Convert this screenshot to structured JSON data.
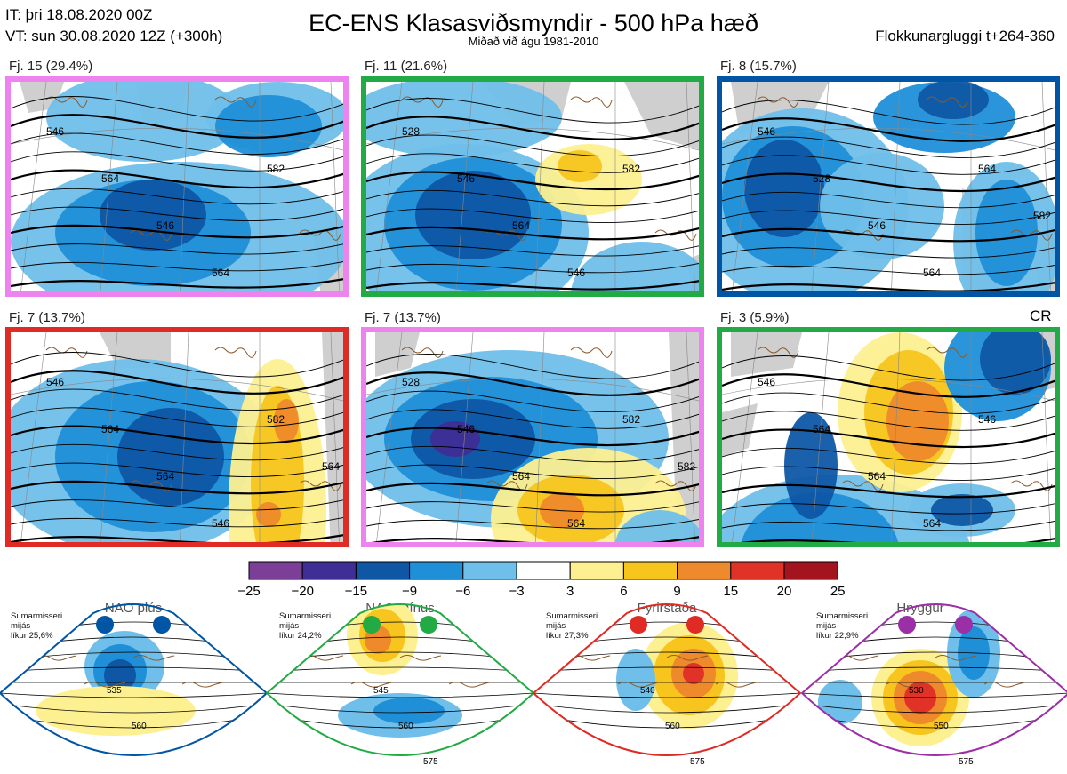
{
  "header": {
    "initial_time": "IT: þri 18.08.2020 00Z",
    "valid_time": "VT: sun 30.08.2020 12Z  (+300h)",
    "title": "EC-ENS Klasasviðsmyndir - 500 hPa hæð",
    "subtitle": "Miðað við águ 1981-2010",
    "cluster_window": "Flokkunargluggi t+264-360"
  },
  "panels": [
    {
      "label": "Fj. 15 (29.4%)",
      "members": 15,
      "percent": 29.4,
      "frame_color": "#ee82ee",
      "contours": [
        "546",
        "564",
        "546",
        "564",
        "582"
      ]
    },
    {
      "label": "Fj. 11 (21.6%)",
      "members": 11,
      "percent": 21.6,
      "frame_color": "#22aa44",
      "contours": [
        "528",
        "546",
        "564",
        "546",
        "582"
      ]
    },
    {
      "label": "Fj. 8 (15.7%)",
      "members": 8,
      "percent": 15.7,
      "frame_color": "#0055a5",
      "contours": [
        "546",
        "528",
        "546",
        "564",
        "564",
        "582"
      ]
    },
    {
      "label": "Fj. 7 (13.7%)",
      "members": 7,
      "percent": 13.7,
      "frame_color": "#e02a24",
      "contours": [
        "546",
        "564",
        "564",
        "546",
        "582",
        "564"
      ]
    },
    {
      "label": "Fj. 7 (13.7%)",
      "members": 7,
      "percent": 13.7,
      "frame_color": "#ee82ee",
      "contours": [
        "528",
        "546",
        "564",
        "564",
        "582",
        "582"
      ]
    },
    {
      "label": "Fj. 3 (5.9%)",
      "members": 3,
      "percent": 5.9,
      "frame_color": "#22aa44",
      "contours": [
        "546",
        "564",
        "564",
        "564",
        "546"
      ]
    }
  ],
  "climatology_reference_label": "CR",
  "colorbar": {
    "ticks": [
      "−25",
      "−20",
      "−15",
      "−9",
      "−6",
      "−3",
      "3",
      "6",
      "9",
      "15",
      "20",
      "25"
    ],
    "colors": [
      "#7b3f97",
      "#3f2e95",
      "#0f57a5",
      "#1f8fd8",
      "#6fbfea",
      "#ffffff",
      "#fdf091",
      "#f7c51e",
      "#ee8a2c",
      "#e13228",
      "#a3141f"
    ]
  },
  "regimes": [
    {
      "name": "NAO plús",
      "season": "Sumarmisseri",
      "status": "mijás",
      "probability": "líkur 25,6%",
      "color": "#0055a5",
      "contours": [
        "535",
        "560"
      ]
    },
    {
      "name": "NAO mínus",
      "season": "Sumarmisseri",
      "status": "mijás",
      "probability": "líkur 24,2%",
      "color": "#22aa44",
      "contours": [
        "545",
        "560",
        "575"
      ]
    },
    {
      "name": "Fyrirstaða",
      "season": "Sumarmisseri",
      "status": "mijás",
      "probability": "líkur 27,3%",
      "color": "#e02a24",
      "contours": [
        "540",
        "560",
        "575"
      ]
    },
    {
      "name": "Hryggur",
      "season": "Sumarmisseri",
      "status": "mijás",
      "probability": "líkur 22,9%",
      "color": "#9b2fa6",
      "contours": [
        "530",
        "550",
        "575"
      ]
    }
  ],
  "chart_data": {
    "type": "heatmap",
    "title": "EC-ENS Klasasviðsmyndir - 500 hPa hæð",
    "variable": "500 hPa geopotential height anomaly",
    "anomaly_ticks": [
      -25,
      -20,
      -15,
      -9,
      -6,
      -3,
      3,
      6,
      9,
      15,
      20,
      25
    ],
    "clusters": [
      {
        "label": "Fj. 15 (29.4%)",
        "members": 15,
        "percent": 29.4
      },
      {
        "label": "Fj. 11 (21.6%)",
        "members": 11,
        "percent": 21.6
      },
      {
        "label": "Fj. 8 (15.7%)",
        "members": 8,
        "percent": 15.7
      },
      {
        "label": "Fj. 7 (13.7%)",
        "members": 7,
        "percent": 13.7
      },
      {
        "label": "Fj. 7 (13.7%)",
        "members": 7,
        "percent": 13.7
      },
      {
        "label": "Fj. 3 (5.9%)",
        "members": 3,
        "percent": 5.9
      }
    ],
    "regimes": [
      {
        "name": "NAO plús",
        "probability_percent": 25.6
      },
      {
        "name": "NAO mínus",
        "probability_percent": 24.2
      },
      {
        "name": "Fyrirstaða",
        "probability_percent": 27.3
      },
      {
        "name": "Hryggur",
        "probability_percent": 22.9
      }
    ]
  }
}
